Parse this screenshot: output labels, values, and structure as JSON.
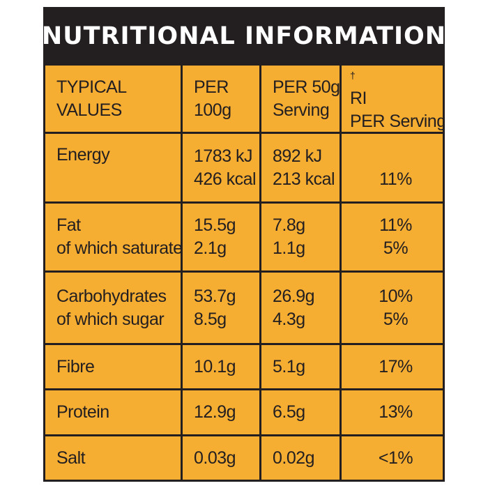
{
  "title": "NUTRITIONAL INFORMATION",
  "header": {
    "col1": [
      "TYPICAL",
      "VALUES"
    ],
    "col2": [
      "PER",
      "100g"
    ],
    "col3": [
      "PER 50g",
      "Serving"
    ],
    "col4_dagger": "†",
    "col4": [
      "RI",
      "PER Serving"
    ]
  },
  "rows": [
    {
      "name": [
        "Energy"
      ],
      "per100g": [
        "1783 kJ",
        "426 kcal"
      ],
      "per50g": [
        "892 kJ",
        "213 kcal"
      ],
      "ri": [
        "",
        "11%"
      ]
    },
    {
      "name": [
        "Fat",
        "of which saturates"
      ],
      "per100g": [
        "15.5g",
        "2.1g"
      ],
      "per50g": [
        "7.8g",
        "1.1g"
      ],
      "ri": [
        "11%",
        "5%"
      ]
    },
    {
      "name": [
        "Carbohydrates",
        "of which sugar"
      ],
      "per100g": [
        "53.7g",
        "8.5g"
      ],
      "per50g": [
        "26.9g",
        "4.3g"
      ],
      "ri": [
        "10%",
        "5%"
      ]
    },
    {
      "name": [
        "Fibre"
      ],
      "per100g": [
        "10.1g"
      ],
      "per50g": [
        "5.1g"
      ],
      "ri": [
        "17%"
      ]
    },
    {
      "name": [
        "Protein"
      ],
      "per100g": [
        "12.9g"
      ],
      "per50g": [
        "6.5g"
      ],
      "ri": [
        "13%"
      ]
    },
    {
      "name": [
        "Salt"
      ],
      "per100g": [
        "0.03g"
      ],
      "per50g": [
        "0.02g"
      ],
      "ri": [
        "<1%"
      ]
    }
  ],
  "colors": {
    "background": "#231f20",
    "cell": "#f5ad32",
    "title_text": "#ffffff",
    "cell_text": "#231f20"
  }
}
